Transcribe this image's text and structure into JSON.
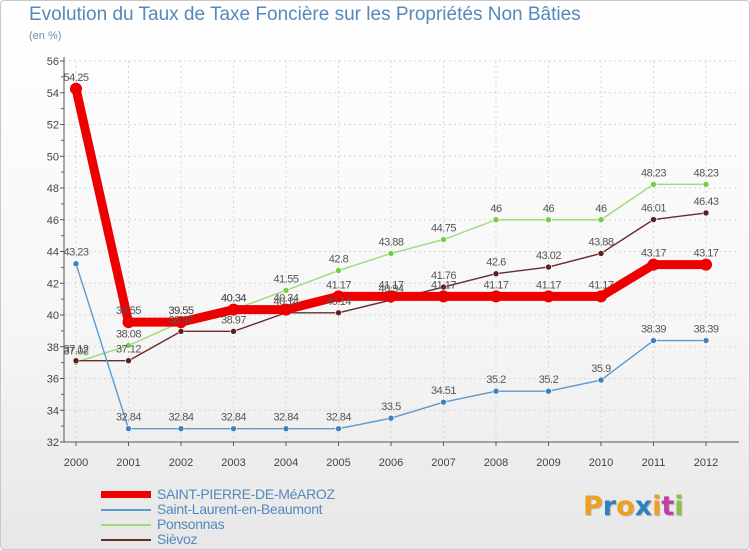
{
  "header": {
    "title": "Evolution du Taux de Taxe Foncière sur les Propriétés Non Bâties",
    "unit": "(en %)"
  },
  "logo": {
    "text": "Proxiti",
    "letters": [
      "P",
      "r",
      "o",
      "x",
      "i",
      "t",
      "i"
    ],
    "colors": [
      "#f0a020",
      "#2f7fc0",
      "#f0a020",
      "#2f7fc0",
      "#f0a020",
      "#c040a0",
      "#8cc040"
    ]
  },
  "chart_data": {
    "type": "line",
    "title": "Evolution du Taux de Taxe Foncière sur les Propriétés Non Bâties",
    "ylabel": "(en %)",
    "xlabel": "",
    "ylim": [
      32,
      56
    ],
    "yticks": [
      32,
      34,
      36,
      38,
      40,
      42,
      44,
      46,
      48,
      50,
      52,
      54,
      56
    ],
    "categories": [
      "2000",
      "2001",
      "2002",
      "2003",
      "2004",
      "2005",
      "2006",
      "2007",
      "2008",
      "2009",
      "2010",
      "2011",
      "2012"
    ],
    "series": [
      {
        "name": "Ponsonnas",
        "color": "#99dd77",
        "marker": "#77cc44",
        "labels": [
          "37.02",
          "38.08",
          "39.55",
          "40.34",
          "41.55",
          "42.8",
          "43.88",
          "44.75",
          "46",
          "46",
          "46",
          "48.23",
          "48.23"
        ],
        "values": [
          37.02,
          38.08,
          39.55,
          40.34,
          41.55,
          42.8,
          43.88,
          44.75,
          46,
          46,
          46,
          48.23,
          48.23
        ]
      },
      {
        "name": "Sièvoz",
        "color": "#6a2a2a",
        "marker": "#5a1f1f",
        "labels": [
          "37.12",
          "37.12",
          "38.97",
          "38.97",
          "40.14",
          "40.14",
          "40.94",
          "41.76",
          "42.6",
          "43.02",
          "43.88",
          "46.01",
          "46.43"
        ],
        "values": [
          37.12,
          37.12,
          38.97,
          38.97,
          40.14,
          40.14,
          40.94,
          41.76,
          42.6,
          43.02,
          43.88,
          46.01,
          46.43
        ]
      },
      {
        "name": "Saint-Laurent-en-Beaumont",
        "color": "#5a9ad0",
        "marker": "#4080c0",
        "labels": [
          "43.23",
          "32.84",
          "32.84",
          "32.84",
          "32.84",
          "32.84",
          "33.5",
          "34.51",
          "35.2",
          "35.2",
          "35.9",
          "38.39",
          "38.39"
        ],
        "values": [
          43.23,
          32.84,
          32.84,
          32.84,
          32.84,
          32.84,
          33.5,
          34.51,
          35.2,
          35.2,
          35.9,
          38.39,
          38.39
        ]
      },
      {
        "name": "SAINT-PIERRE-DE-MéAROZ",
        "color": "#ee0000",
        "marker": "#ee0000",
        "labels": [
          "54.25",
          "39.55",
          "39.55",
          "40.34",
          "40.34",
          "41.17",
          "41.17",
          "41.17",
          "41.17",
          "41.17",
          "41.17",
          "43.17",
          "43.17"
        ],
        "values": [
          54.25,
          39.55,
          39.55,
          40.34,
          40.34,
          41.17,
          41.17,
          41.17,
          41.17,
          41.17,
          41.17,
          43.17,
          43.17
        ]
      }
    ],
    "legend": [
      {
        "name": "SAINT-PIERRE-DE-MéAROZ",
        "color": "#ee0000",
        "thick": true
      },
      {
        "name": "Saint-Laurent-en-Beaumont",
        "color": "#5a9ad0",
        "thick": false
      },
      {
        "name": "Ponsonnas",
        "color": "#99dd77",
        "thick": false
      },
      {
        "name": "Sièvoz",
        "color": "#6a2a2a",
        "thick": false
      }
    ]
  }
}
